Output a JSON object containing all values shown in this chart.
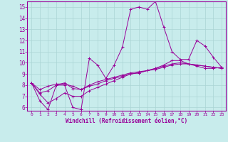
{
  "xlabel": "Windchill (Refroidissement éolien,°C)",
  "background_color": "#c8ecec",
  "grid_color": "#aad4d4",
  "line_color": "#990099",
  "xlim": [
    -0.5,
    23.5
  ],
  "ylim": [
    5.7,
    15.5
  ],
  "xticks": [
    0,
    1,
    2,
    3,
    4,
    5,
    6,
    7,
    8,
    9,
    10,
    11,
    12,
    13,
    14,
    15,
    16,
    17,
    18,
    19,
    20,
    21,
    22,
    23
  ],
  "yticks": [
    6,
    7,
    8,
    9,
    10,
    11,
    12,
    13,
    14,
    15
  ],
  "lines": [
    [
      8.2,
      6.6,
      5.8,
      8.0,
      8.0,
      6.0,
      5.8,
      10.4,
      9.8,
      8.6,
      9.8,
      11.4,
      14.8,
      15.0,
      14.8,
      15.5,
      13.2,
      11.0,
      10.3,
      10.3,
      12.0,
      11.5,
      10.5,
      9.6
    ],
    [
      8.2,
      7.3,
      7.5,
      8.0,
      8.2,
      7.7,
      7.6,
      8.0,
      8.3,
      8.5,
      8.7,
      8.9,
      9.1,
      9.2,
      9.3,
      9.4,
      9.6,
      9.8,
      9.9,
      9.9,
      9.8,
      9.7,
      9.6,
      9.5
    ],
    [
      8.2,
      7.2,
      6.4,
      6.8,
      7.3,
      7.0,
      7.0,
      7.5,
      7.8,
      8.1,
      8.4,
      8.7,
      9.0,
      9.1,
      9.3,
      9.5,
      9.8,
      10.2,
      10.2,
      9.9,
      9.7,
      9.5,
      9.5,
      9.6
    ],
    [
      8.2,
      7.6,
      7.9,
      8.1,
      8.1,
      7.9,
      7.6,
      7.9,
      8.1,
      8.4,
      8.6,
      8.8,
      9.0,
      9.1,
      9.3,
      9.5,
      9.7,
      9.9,
      10.0,
      9.9,
      9.8,
      9.7,
      9.6,
      9.5
    ]
  ]
}
